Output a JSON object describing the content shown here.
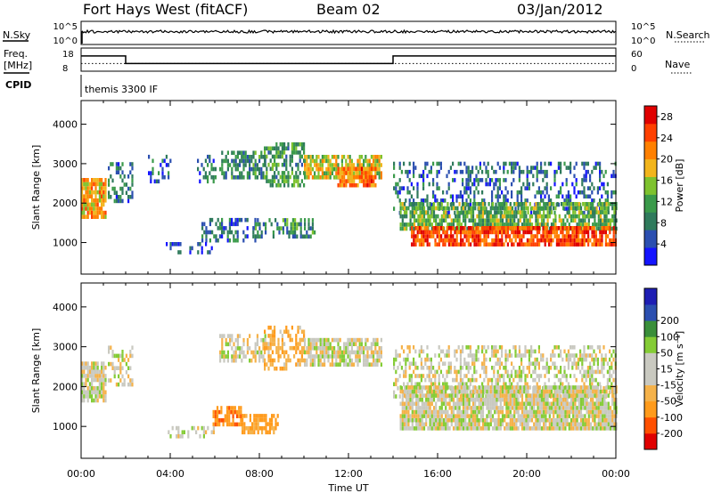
{
  "header": {
    "station": "Fort Hays West (fitACF)",
    "beam": "Beam 02",
    "date": "03/Jan/2012"
  },
  "strips": {
    "nsky_label": "N.Sky",
    "nsearch_label": "N.Search",
    "freq_label": "Freq.",
    "freq_unit": "[MHz]",
    "nave_label": "Nave",
    "cpid_label": "CPID",
    "cpid_value": "themis 3300 IF",
    "noise_ticks": [
      "10^5",
      "10^0"
    ],
    "freq_ticks": [
      "18",
      "8"
    ],
    "nave_ticks": [
      "60",
      "0"
    ],
    "freq_steps": [
      {
        "start": "00:00",
        "end": "02:00",
        "mhz": 14.6
      },
      {
        "start": "02:00",
        "end": "14:00",
        "mhz": 11.3
      },
      {
        "start": "14:00",
        "end": "24:00",
        "mhz": 14.6
      }
    ],
    "nave_level": 20
  },
  "colors": {
    "power": [
      "#1414ff",
      "#2b4fb0",
      "#2f7a5c",
      "#3a9a4a",
      "#7ec22e",
      "#f2b51c",
      "#ff8000",
      "#ff4000",
      "#e00000"
    ],
    "velocity": [
      "#e00000",
      "#ff5000",
      "#ff9b1c",
      "#f5b24a",
      "#c9c9c0",
      "#c9c9c0",
      "#84cc35",
      "#3a8f3a",
      "#2b4fb0",
      "#1e1eb4"
    ]
  },
  "chart_data": [
    {
      "type": "heatmap",
      "quantity": "Power",
      "colorbar_label": "Power [dB]",
      "colorbar_ticks": [
        4,
        8,
        12,
        16,
        20,
        24,
        28
      ],
      "colorbar_range": [
        0,
        30
      ],
      "xlabel": "Time UT",
      "ylabel": "Slant Range [km]",
      "xticks": [
        "00:00",
        "04:00",
        "08:00",
        "12:00",
        "16:00",
        "20:00",
        "00:00"
      ],
      "xlim_hours": [
        0,
        24
      ],
      "ylim": [
        200,
        4600
      ],
      "yticks": [
        1000,
        2000,
        3000,
        4000
      ],
      "regions": [
        {
          "t0": 0.0,
          "t1": 1.1,
          "r0": 1600,
          "r1": 2600,
          "value": 20,
          "density": 0.85
        },
        {
          "t0": 1.2,
          "t1": 2.3,
          "r0": 2000,
          "r1": 3000,
          "value": 8,
          "density": 0.45
        },
        {
          "t0": 3.0,
          "t1": 4.0,
          "r0": 2500,
          "r1": 3200,
          "value": 6,
          "density": 0.35
        },
        {
          "t0": 5.2,
          "t1": 6.0,
          "r0": 2500,
          "r1": 3200,
          "value": 7,
          "density": 0.4
        },
        {
          "t0": 6.2,
          "t1": 8.3,
          "r0": 2600,
          "r1": 3300,
          "value": 9,
          "density": 0.6
        },
        {
          "t0": 8.2,
          "t1": 10.0,
          "r0": 2400,
          "r1": 3500,
          "value": 11,
          "density": 0.55
        },
        {
          "t0": 10.0,
          "t1": 13.5,
          "r0": 2600,
          "r1": 3200,
          "value": 17,
          "density": 0.75
        },
        {
          "t0": 11.5,
          "t1": 13.2,
          "r0": 2400,
          "r1": 2900,
          "value": 22,
          "density": 0.8
        },
        {
          "t0": 5.4,
          "t1": 7.8,
          "r0": 1000,
          "r1": 1600,
          "value": 7,
          "density": 0.5
        },
        {
          "t0": 7.8,
          "t1": 10.5,
          "r0": 1100,
          "r1": 1600,
          "value": 10,
          "density": 0.55
        },
        {
          "t0": 3.8,
          "t1": 6.0,
          "r0": 700,
          "r1": 1000,
          "value": 5,
          "density": 0.3
        },
        {
          "t0": 14.0,
          "t1": 24.0,
          "r0": 1700,
          "r1": 3000,
          "value": 7,
          "density": 0.35
        },
        {
          "t0": 14.3,
          "t1": 24.0,
          "r0": 1300,
          "r1": 2000,
          "value": 13,
          "density": 0.75
        },
        {
          "t0": 14.8,
          "t1": 24.0,
          "r0": 900,
          "r1": 1400,
          "value": 25,
          "density": 0.85
        }
      ]
    },
    {
      "type": "heatmap",
      "quantity": "Velocity",
      "colorbar_label": "Velocity [m s⁻¹]",
      "colorbar_ticks": [
        -200,
        -100,
        -50,
        -15,
        15,
        50,
        100,
        200
      ],
      "xlabel": "Time UT",
      "ylabel": "Slant Range [km]",
      "xticks": [
        "00:00",
        "04:00",
        "08:00",
        "12:00",
        "16:00",
        "20:00",
        "00:00"
      ],
      "xlim_hours": [
        0,
        24
      ],
      "ylim": [
        200,
        4600
      ],
      "yticks": [
        1000,
        2000,
        3000,
        4000
      ],
      "regions": [
        {
          "t0": 0.0,
          "t1": 1.1,
          "r0": 1600,
          "r1": 2600,
          "value": 0,
          "density": 0.85
        },
        {
          "t0": 1.2,
          "t1": 2.3,
          "r0": 2000,
          "r1": 3000,
          "value": 0,
          "density": 0.45
        },
        {
          "t0": 6.2,
          "t1": 8.3,
          "r0": 2600,
          "r1": 3300,
          "value": -5,
          "density": 0.55
        },
        {
          "t0": 8.2,
          "t1": 10.0,
          "r0": 2400,
          "r1": 3500,
          "value": -40,
          "density": 0.5
        },
        {
          "t0": 10.0,
          "t1": 13.5,
          "r0": 2500,
          "r1": 3200,
          "value": 0,
          "density": 0.75
        },
        {
          "t0": 5.9,
          "t1": 7.2,
          "r0": 1000,
          "r1": 1500,
          "value": -90,
          "density": 0.75
        },
        {
          "t0": 7.2,
          "t1": 8.8,
          "r0": 800,
          "r1": 1300,
          "value": -70,
          "density": 0.7
        },
        {
          "t0": 3.8,
          "t1": 6.0,
          "r0": 700,
          "r1": 1000,
          "value": 0,
          "density": 0.3
        },
        {
          "t0": 14.0,
          "t1": 24.0,
          "r0": 1700,
          "r1": 3000,
          "value": 0,
          "density": 0.45
        },
        {
          "t0": 14.3,
          "t1": 24.0,
          "r0": 900,
          "r1": 2000,
          "value": 0,
          "density": 0.9
        }
      ]
    }
  ]
}
